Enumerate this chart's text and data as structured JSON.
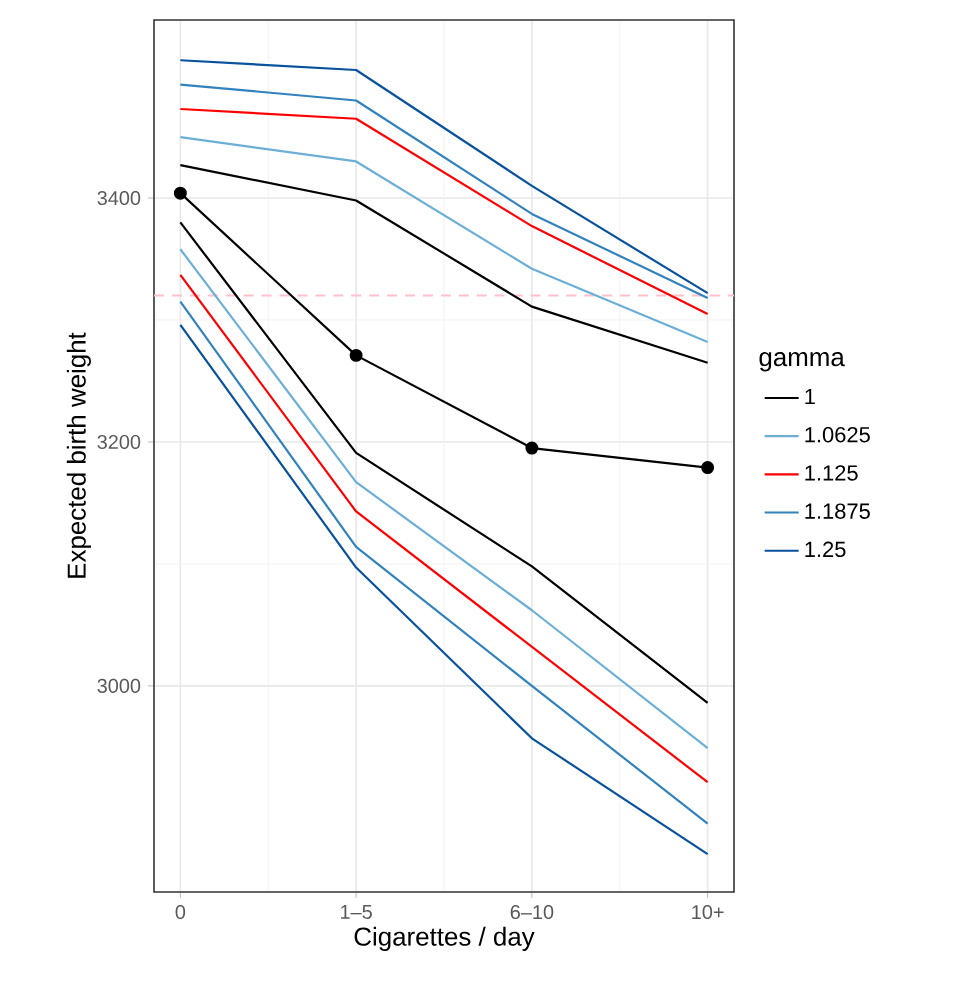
{
  "chart_data": {
    "type": "line",
    "xlabel": "Cigarettes / day",
    "ylabel": "Expected birth weight",
    "legend_title": "gamma",
    "legend": "right",
    "grid": true,
    "categories": [
      "0",
      "1–5",
      "6–10",
      "10+"
    ],
    "ylim": [
      2831,
      3546
    ],
    "yticks": [
      3000,
      3200,
      3400
    ],
    "series": [
      {
        "name": "1",
        "color": "#000000",
        "values": [
          3427,
          3398,
          3311,
          3265
        ]
      },
      {
        "color": "#000000",
        "values": [
          3380,
          3191,
          3098,
          2986
        ]
      },
      {
        "name": "1.0625",
        "color": "#6baed6",
        "values": [
          3450,
          3430,
          3342,
          3282
        ]
      },
      {
        "color": "#6baed6",
        "values": [
          3358,
          3167,
          3062,
          2949
        ]
      },
      {
        "name": "1.125",
        "color": "#ff0000",
        "values": [
          3473,
          3465,
          3377,
          3305
        ]
      },
      {
        "color": "#ff0000",
        "values": [
          3337,
          3143,
          3032,
          2921
        ]
      },
      {
        "name": "1.1875",
        "color": "#3182bd",
        "values": [
          3493,
          3480,
          3387,
          3318
        ]
      },
      {
        "color": "#3182bd",
        "values": [
          3315,
          3114,
          3000,
          2887
        ]
      },
      {
        "name": "1.25",
        "color": "#08519c",
        "values": [
          3513,
          3505,
          3410,
          3322
        ]
      },
      {
        "color": "#08519c",
        "values": [
          3296,
          3097,
          2957,
          2862
        ]
      },
      {
        "color": "#000000",
        "marker": "circle",
        "values": [
          3404,
          3271,
          3195,
          3179
        ]
      }
    ],
    "ref_lines": [
      {
        "axis": "y",
        "value": 3320,
        "color": "#ffc0cb",
        "line_style": "dashed"
      }
    ]
  }
}
